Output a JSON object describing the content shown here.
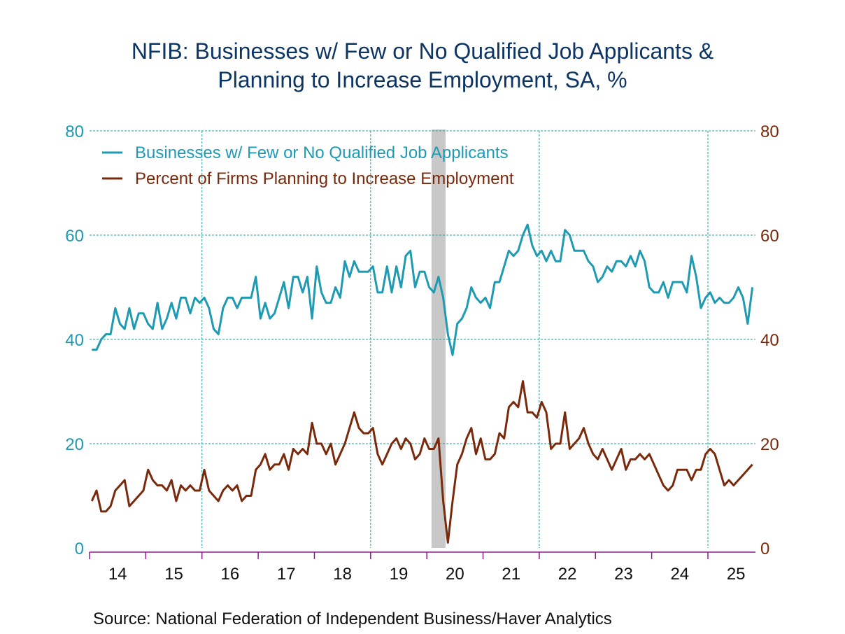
{
  "title_line1": "NFIB: Businesses w/ Few or No Qualified Job Applicants &",
  "title_line2": "Planning to Increase Employment, SA, %",
  "source": "Source:  National Federation of Independent Business/Haver Analytics",
  "colors": {
    "series1": "#1f9ab3",
    "series2": "#7a2a0c",
    "title": "#0d3564",
    "grid": "#1fa0a0",
    "axis": "#8a1a8a",
    "recession": "#c8c8c8"
  },
  "chart_data": {
    "type": "line",
    "title": "NFIB: Businesses w/ Few or No Qualified Job Applicants & Planning to Increase Employment, SA, %",
    "frequency": "monthly",
    "start": "2014-01",
    "xlabel": "",
    "ylabel_left": "",
    "ylabel_right": "",
    "ylim_left": [
      0,
      80
    ],
    "ylim_right": [
      0,
      80
    ],
    "yticks_left": [
      "0",
      "20",
      "40",
      "60",
      "80"
    ],
    "yticks_right": [
      "0",
      "20",
      "40",
      "60",
      "80"
    ],
    "xticks": [
      "14",
      "15",
      "16",
      "17",
      "18",
      "19",
      "20",
      "21",
      "22",
      "23",
      "24",
      "25"
    ],
    "x_range": [
      "2014-01",
      "2025-12"
    ],
    "grid": true,
    "legend_position": "top-left",
    "recession_shading": [
      "2020-02",
      "2020-04"
    ],
    "series": [
      {
        "name": "Businesses w/ Few or No Qualified Job Applicants",
        "axis": "left",
        "values": [
          38,
          38,
          40,
          41,
          41,
          46,
          43,
          42,
          46,
          42,
          45,
          45,
          43,
          42,
          47,
          42,
          44,
          47,
          44,
          48,
          48,
          45,
          48,
          47,
          48,
          46,
          42,
          41,
          46,
          48,
          48,
          46,
          48,
          48,
          48,
          52,
          44,
          47,
          44,
          45,
          48,
          51,
          46,
          52,
          52,
          49,
          52,
          44,
          54,
          49,
          47,
          47,
          50,
          48,
          55,
          52,
          55,
          53,
          53,
          53,
          54,
          49,
          49,
          54,
          49,
          54,
          50,
          56,
          57,
          50,
          53,
          53,
          50,
          49,
          52,
          48,
          41,
          37,
          43,
          44,
          46,
          50,
          48,
          47,
          48,
          46,
          51,
          51,
          54,
          57,
          56,
          57,
          60,
          62,
          58,
          56,
          57,
          55,
          57,
          55,
          55,
          61,
          60,
          57,
          57,
          57,
          55,
          54,
          51,
          52,
          54,
          53,
          55,
          55,
          54,
          56,
          54,
          57,
          55,
          50,
          49,
          49,
          51,
          48,
          51,
          51,
          51,
          49,
          56,
          52,
          46,
          48,
          49,
          47,
          48,
          47,
          47,
          48,
          50,
          48,
          43,
          50
        ]
      },
      {
        "name": "Percent of Firms Planning to Increase Employment",
        "axis": "right",
        "values": [
          9,
          11,
          7,
          7,
          8,
          11,
          12,
          13,
          8,
          9,
          10,
          11,
          15,
          13,
          12,
          12,
          11,
          13,
          9,
          12,
          11,
          12,
          11,
          11,
          15,
          11,
          10,
          9,
          11,
          12,
          11,
          12,
          9,
          10,
          10,
          15,
          16,
          18,
          15,
          16,
          16,
          18,
          15,
          19,
          18,
          19,
          18,
          24,
          20,
          20,
          18,
          20,
          16,
          18,
          20,
          23,
          26,
          23,
          22,
          22,
          23,
          18,
          16,
          18,
          20,
          21,
          19,
          21,
          20,
          17,
          18,
          21,
          19,
          19,
          21,
          9,
          1,
          9,
          16,
          18,
          21,
          23,
          18,
          21,
          17,
          17,
          18,
          22,
          21,
          27,
          28,
          27,
          32,
          26,
          26,
          25,
          28,
          26,
          19,
          20,
          20,
          26,
          19,
          20,
          21,
          23,
          20,
          18,
          17,
          19,
          17,
          15,
          17,
          19,
          15,
          17,
          17,
          18,
          17,
          18,
          16,
          14,
          12,
          11,
          12,
          15,
          15,
          15,
          13,
          15,
          15,
          18,
          19,
          18,
          15,
          12,
          13,
          12,
          13,
          14,
          15,
          16
        ]
      }
    ]
  }
}
